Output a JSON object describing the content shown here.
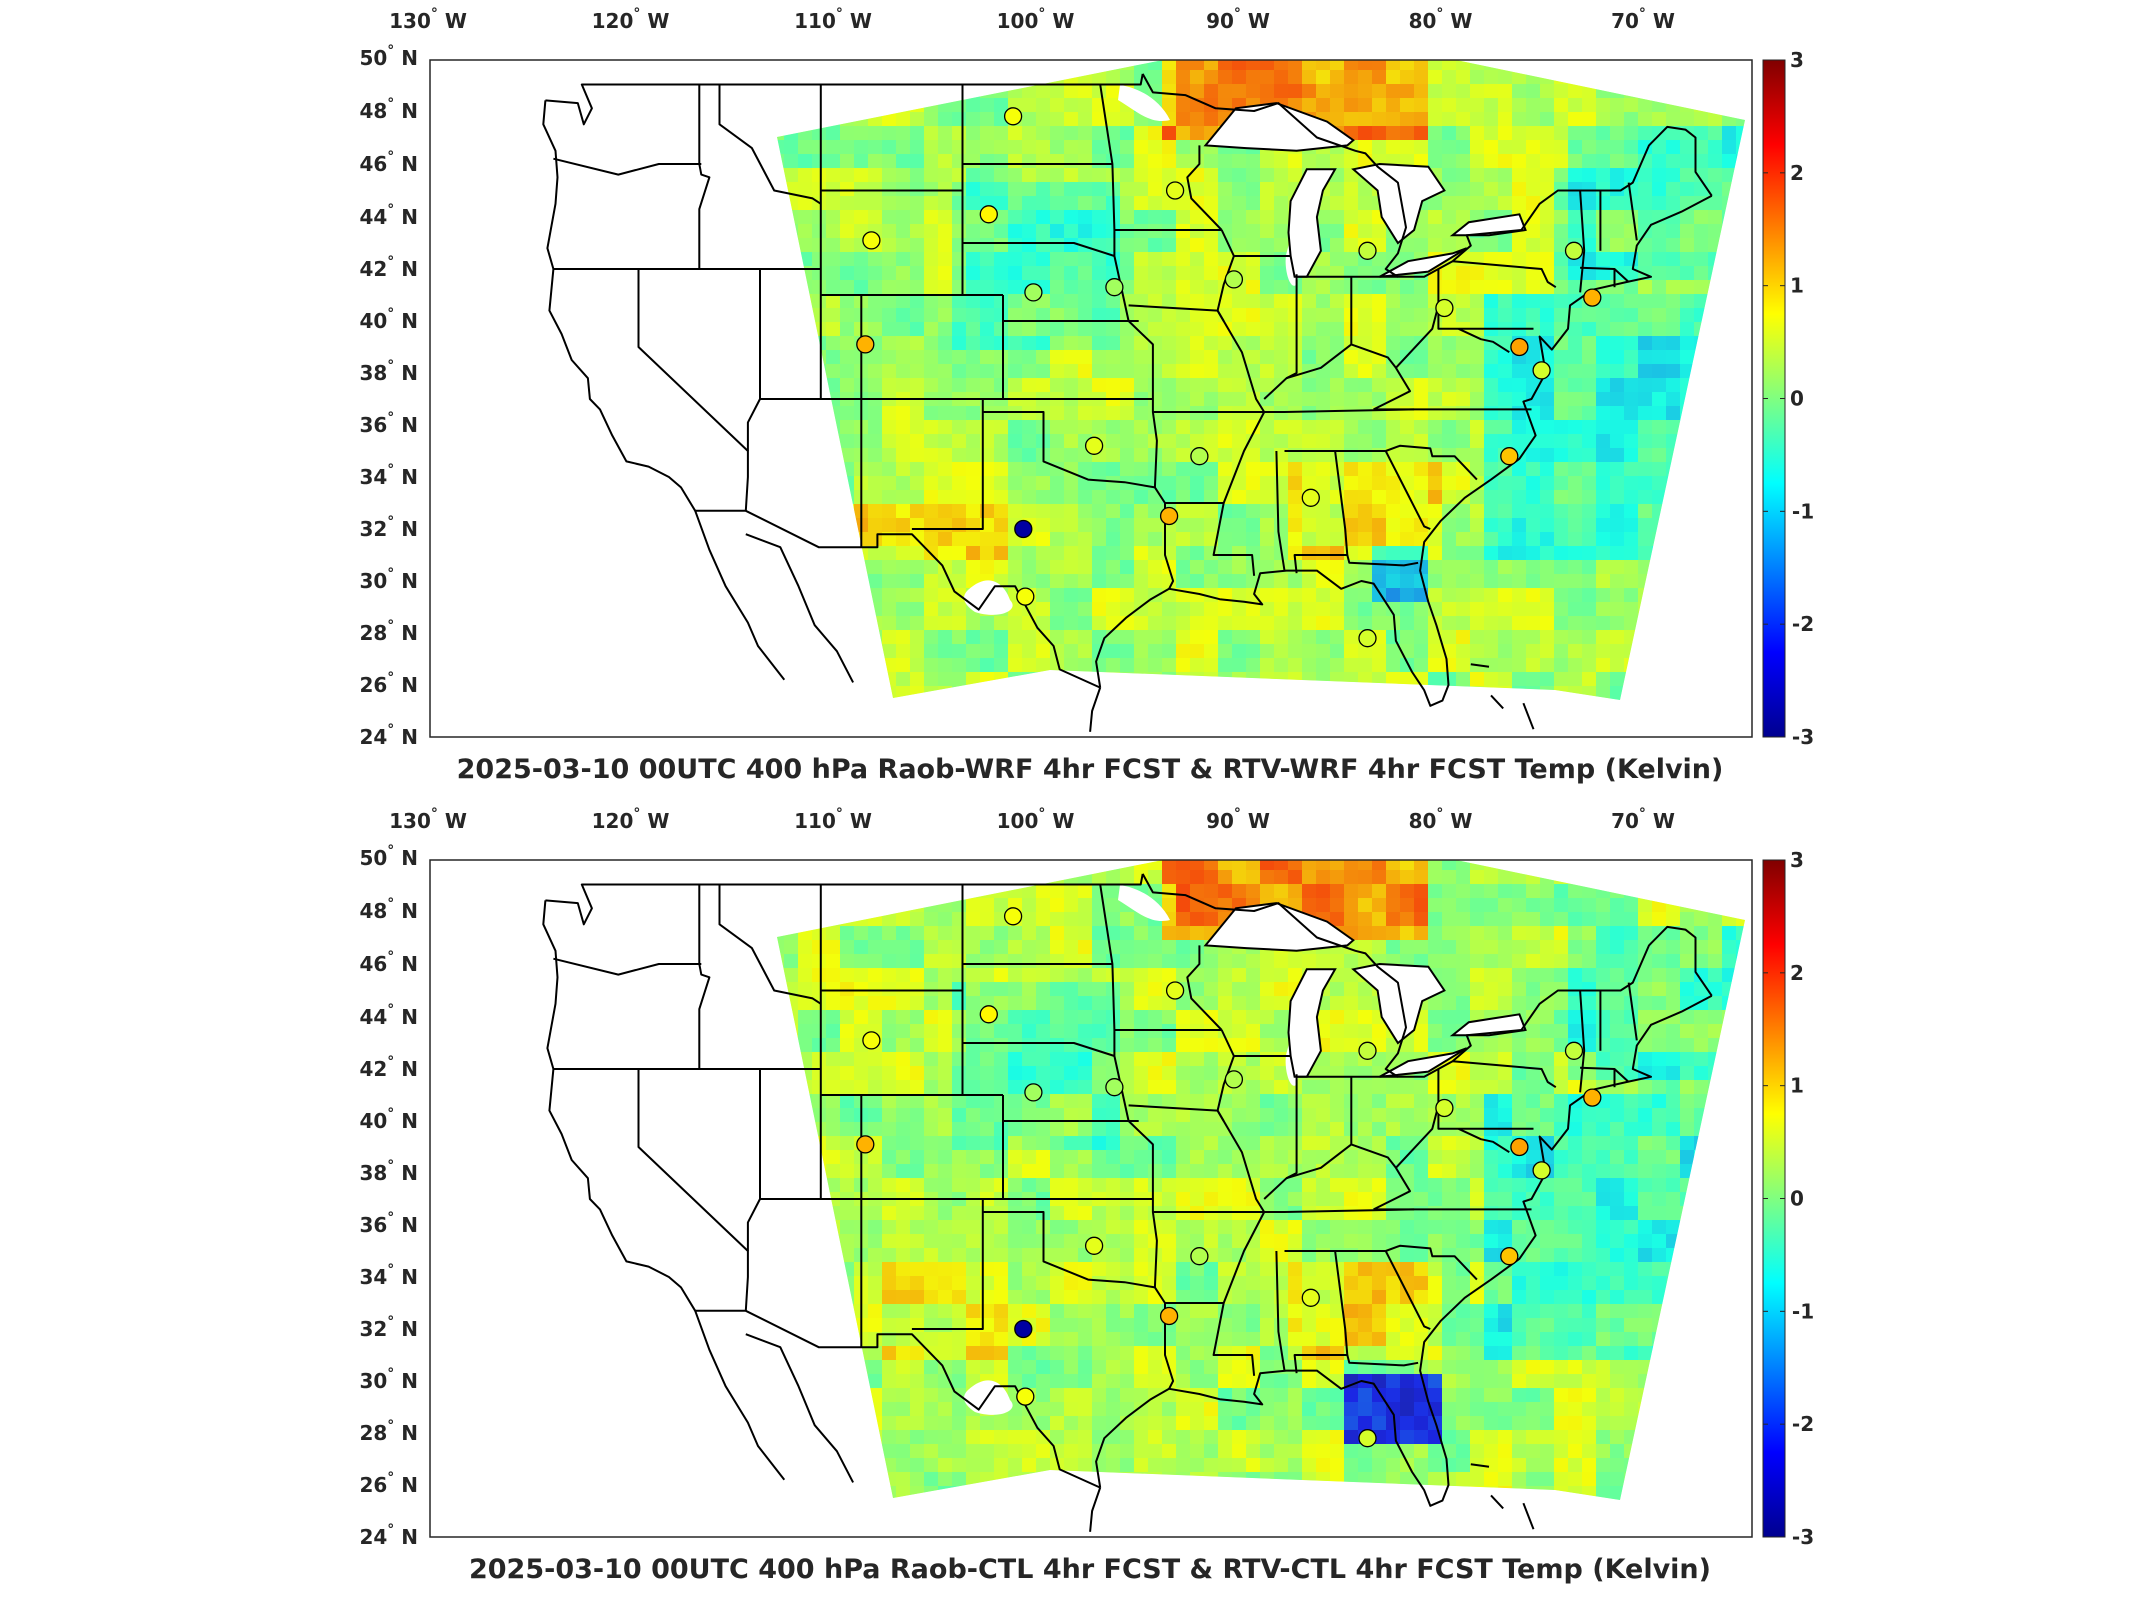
{
  "panels": [
    {
      "id": "top",
      "title": "2025-03-10 00UTC 400 hPa Raob-WRF 4hr FCST & RTV-WRF 4hr FCST Temp (Kelvin)",
      "deep_south_blob": false
    },
    {
      "id": "bottom",
      "title": "2025-03-10 00UTC 400 hPa Raob-CTL 4hr FCST & RTV-CTL 4hr FCST Temp (Kelvin)",
      "deep_south_blob": true
    }
  ],
  "lon_ticks": [
    {
      "deg": "130",
      "dir": "W"
    },
    {
      "deg": "120",
      "dir": "W"
    },
    {
      "deg": "110",
      "dir": "W"
    },
    {
      "deg": "100",
      "dir": "W"
    },
    {
      "deg": "90",
      "dir": "W"
    },
    {
      "deg": "80",
      "dir": "W"
    },
    {
      "deg": "70",
      "dir": "W"
    }
  ],
  "lat_ticks": [
    {
      "deg": "50",
      "dir": "N"
    },
    {
      "deg": "48",
      "dir": "N"
    },
    {
      "deg": "46",
      "dir": "N"
    },
    {
      "deg": "44",
      "dir": "N"
    },
    {
      "deg": "42",
      "dir": "N"
    },
    {
      "deg": "40",
      "dir": "N"
    },
    {
      "deg": "38",
      "dir": "N"
    },
    {
      "deg": "36",
      "dir": "N"
    },
    {
      "deg": "34",
      "dir": "N"
    },
    {
      "deg": "32",
      "dir": "N"
    },
    {
      "deg": "30",
      "dir": "N"
    },
    {
      "deg": "28",
      "dir": "N"
    },
    {
      "deg": "26",
      "dir": "N"
    },
    {
      "deg": "24",
      "dir": "N"
    }
  ],
  "colorbar": {
    "min": -3,
    "max": 3,
    "ticks": [
      "3",
      "2",
      "1",
      "0",
      "-1",
      "-2",
      "-3"
    ],
    "colors": [
      "#00008f",
      "#0000ff",
      "#0080ff",
      "#00ffff",
      "#80ff80",
      "#ffff00",
      "#ff8000",
      "#ff0000",
      "#800000"
    ]
  },
  "raob_stations": [
    {
      "lon": -101.5,
      "lat": 47.8,
      "value": 0.7
    },
    {
      "lon": -93.5,
      "lat": 45.0,
      "value": 0.6
    },
    {
      "lon": -102.7,
      "lat": 44.1,
      "value": 0.8
    },
    {
      "lon": -108.5,
      "lat": 43.1,
      "value": 0.7
    },
    {
      "lon": -100.5,
      "lat": 41.1,
      "value": 0.2
    },
    {
      "lon": -96.5,
      "lat": 41.3,
      "value": 0.2
    },
    {
      "lon": -90.6,
      "lat": 41.6,
      "value": 0.3
    },
    {
      "lon": -84.0,
      "lat": 42.7,
      "value": 0.4
    },
    {
      "lon": -73.8,
      "lat": 42.7,
      "value": 0.4
    },
    {
      "lon": -80.2,
      "lat": 40.5,
      "value": 0.5
    },
    {
      "lon": -108.8,
      "lat": 39.1,
      "value": 1.2
    },
    {
      "lon": -76.5,
      "lat": 39.0,
      "value": 1.3
    },
    {
      "lon": -75.4,
      "lat": 38.1,
      "value": 0.5
    },
    {
      "lon": -72.9,
      "lat": 40.9,
      "value": 1.2
    },
    {
      "lon": -97.5,
      "lat": 35.2,
      "value": 0.6
    },
    {
      "lon": -92.3,
      "lat": 34.8,
      "value": 0.3
    },
    {
      "lon": -86.8,
      "lat": 33.2,
      "value": 0.6
    },
    {
      "lon": -77.0,
      "lat": 34.8,
      "value": 1.1
    },
    {
      "lon": -93.8,
      "lat": 32.5,
      "value": 1.2
    },
    {
      "lon": -101.0,
      "lat": 32.0,
      "value": -2.8
    },
    {
      "lon": -100.9,
      "lat": 29.4,
      "value": 0.7
    },
    {
      "lon": -84.0,
      "lat": 27.8,
      "value": 0.5
    }
  ]
}
